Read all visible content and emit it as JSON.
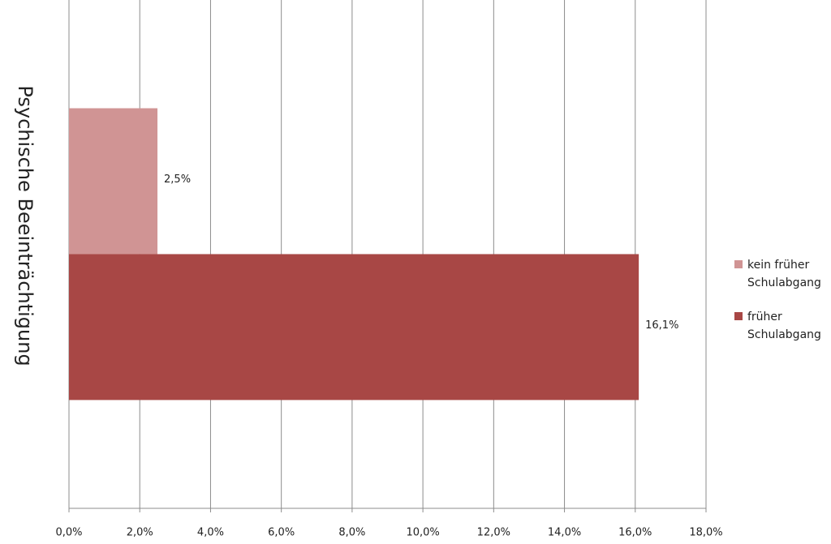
{
  "chart_data": {
    "type": "hbar",
    "categories": [
      "Psychische Beeinträchtigung"
    ],
    "series": [
      {
        "name": "kein früher Schulabgang",
        "color": "#d09494",
        "values": [
          2.5
        ],
        "value_labels": [
          "2,5%"
        ]
      },
      {
        "name": "früher Schulabgang",
        "color": "#a84745",
        "values": [
          16.1
        ],
        "value_labels": [
          "16,1%"
        ]
      }
    ],
    "xlim": [
      0,
      18
    ],
    "xticks": [
      {
        "value": 0,
        "label": "0,0%"
      },
      {
        "value": 2,
        "label": "2,0%"
      },
      {
        "value": 4,
        "label": "4,0%"
      },
      {
        "value": 6,
        "label": "6,0%"
      },
      {
        "value": 8,
        "label": "8,0%"
      },
      {
        "value": 10,
        "label": "10,0%"
      },
      {
        "value": 12,
        "label": "12,0%"
      },
      {
        "value": 14,
        "label": "14,0%"
      },
      {
        "value": 16,
        "label": "16,0%"
      },
      {
        "value": 18,
        "label": "18,0%"
      }
    ],
    "grid": true,
    "legend": "right"
  }
}
